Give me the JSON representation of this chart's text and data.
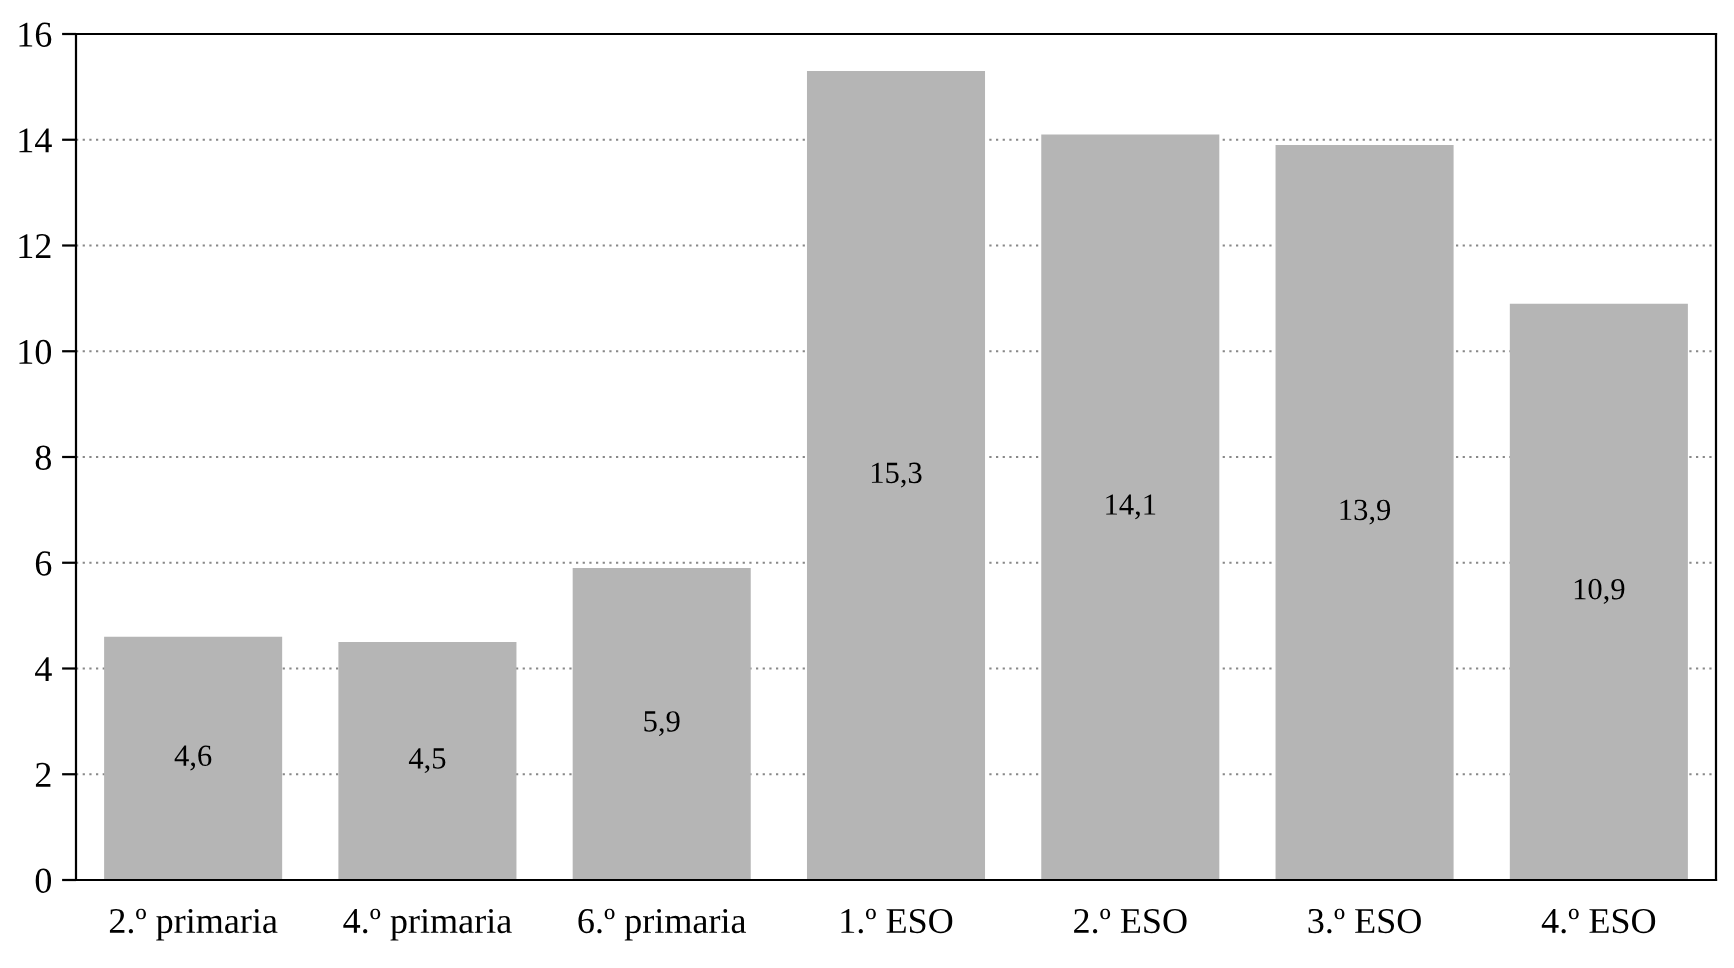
{
  "chart_data": {
    "type": "bar",
    "categories": [
      "2.º primaria",
      "4.º primaria",
      "6.º primaria",
      "1.º ESO",
      "2.º ESO",
      "3.º ESO",
      "4.º ESO"
    ],
    "values": [
      4.6,
      4.5,
      5.9,
      15.3,
      14.1,
      13.9,
      10.9
    ],
    "value_labels": [
      "4,6",
      "4,5",
      "5,9",
      "15,3",
      "14,1",
      "13,9",
      "10,9"
    ],
    "color": "#b5b5b5",
    "ylim": [
      0,
      16
    ],
    "yticks": [
      0,
      2,
      4,
      6,
      8,
      10,
      12,
      14,
      16
    ],
    "grid": "y",
    "legend": false
  }
}
